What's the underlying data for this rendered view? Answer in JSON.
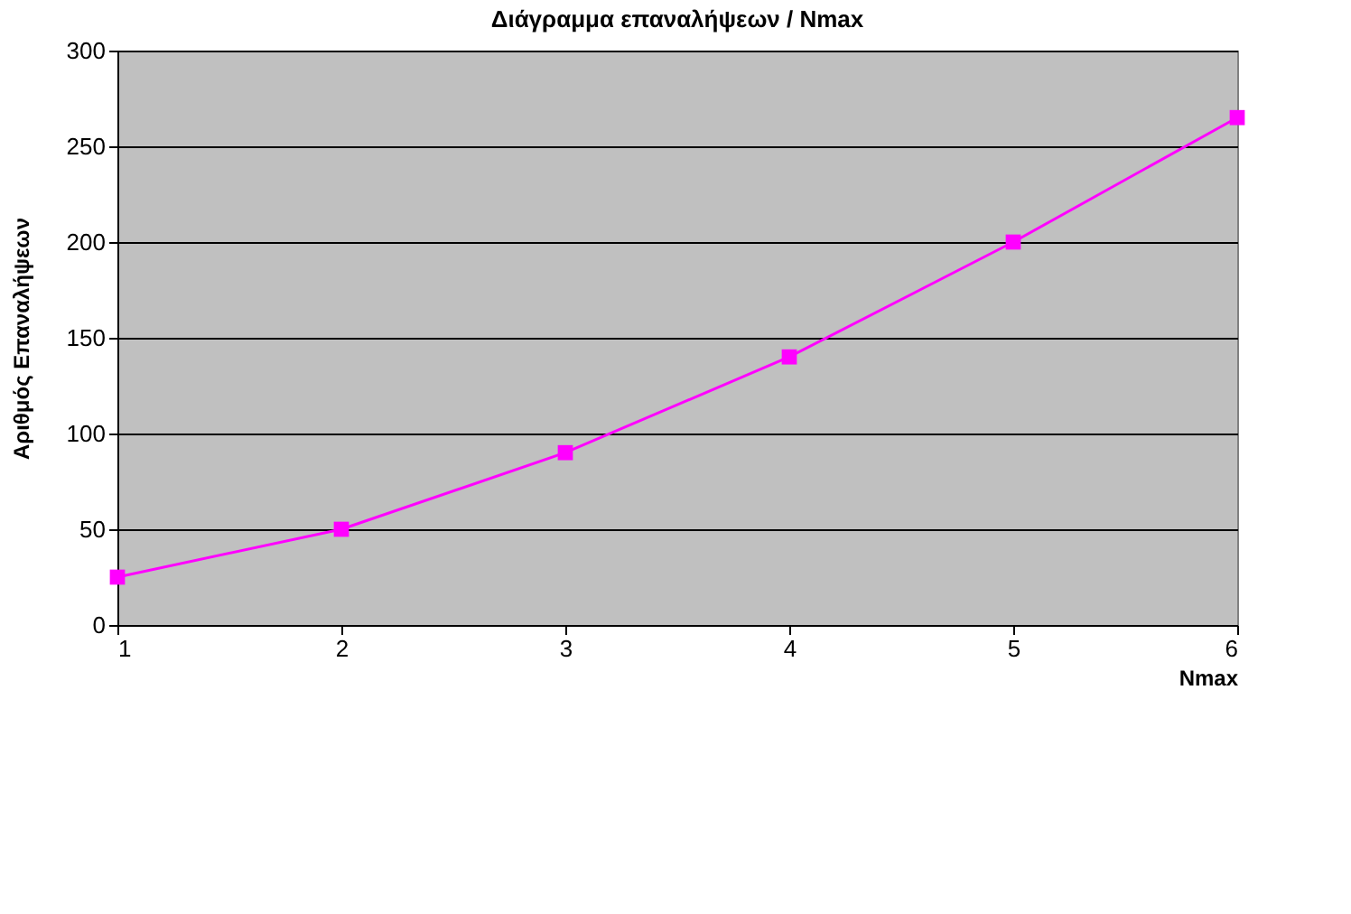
{
  "chart_data": {
    "type": "line",
    "title": "Διάγραμμα επαναλήψεων / Nmax",
    "xlabel": "Nmax",
    "ylabel": "Αριθμός Επαναλήψεων",
    "x": [
      1,
      2,
      3,
      4,
      5,
      6
    ],
    "series": [
      {
        "color": "#ff00ff",
        "values": [
          25,
          50,
          90,
          140,
          200,
          265
        ]
      }
    ],
    "xlim": [
      1,
      6
    ],
    "xticks": [
      1,
      2,
      3,
      4,
      5,
      6
    ],
    "ylim": [
      0,
      300
    ],
    "yticks": [
      0,
      50,
      100,
      150,
      200,
      250,
      300
    ],
    "grid": "y",
    "marker": "square",
    "line_style": "solid"
  }
}
